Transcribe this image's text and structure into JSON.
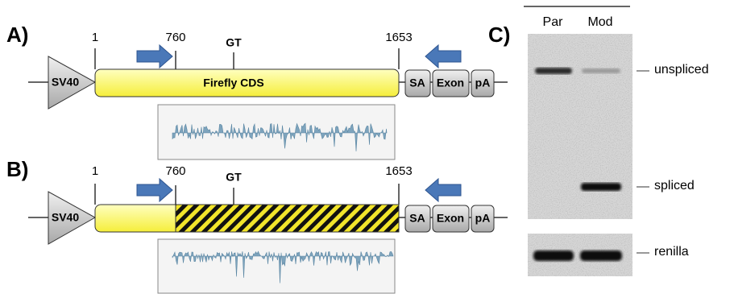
{
  "panels": [
    {
      "label": "A)",
      "positions": [
        "1",
        "760",
        "GT",
        "1653"
      ],
      "promoter": "SV40",
      "cds": "Firefly CDS",
      "elements": [
        "SA",
        "Exon",
        "pA"
      ]
    },
    {
      "label": "B)",
      "positions": [
        "1",
        "760",
        "GT",
        "1653"
      ],
      "promoter": "SV40",
      "elements": [
        "SA",
        "Exon",
        "pA"
      ]
    }
  ],
  "gel": {
    "label": "C)",
    "lanes": [
      "Par",
      "Mod"
    ],
    "bands": [
      "unspliced",
      "spliced",
      "renilla"
    ]
  }
}
